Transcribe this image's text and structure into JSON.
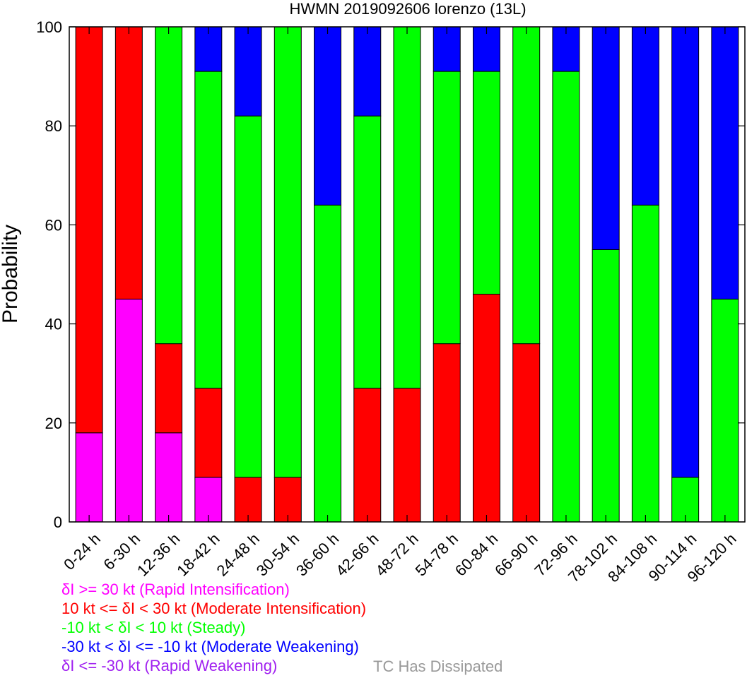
{
  "chart_data": {
    "type": "bar",
    "stacked": true,
    "title": "HWMN 2019092606 lorenzo (13L)",
    "ylabel": "Probability",
    "xlabel": "",
    "ylim": [
      0,
      100
    ],
    "yticks": [
      "0",
      "20",
      "40",
      "60",
      "80",
      "100"
    ],
    "grid": false,
    "categories": [
      "0-24 h",
      "6-30 h",
      "12-36 h",
      "18-42 h",
      "24-48 h",
      "30-54 h",
      "36-60 h",
      "42-66 h",
      "48-72 h",
      "54-78 h",
      "60-84 h",
      "66-90 h",
      "72-96 h",
      "78-102 h",
      "84-108 h",
      "90-114 h",
      "96-120 h"
    ],
    "series": [
      {
        "key": "ri",
        "color": "#ff00ff",
        "values": [
          18,
          45,
          18,
          9,
          0,
          0,
          0,
          0,
          0,
          0,
          0,
          0,
          0,
          0,
          0,
          0,
          0
        ]
      },
      {
        "key": "mi",
        "color": "#ff0000",
        "values": [
          82,
          55,
          18,
          18,
          9,
          9,
          0,
          27,
          27,
          36,
          46,
          36,
          0,
          0,
          0,
          0,
          0
        ]
      },
      {
        "key": "steady",
        "color": "#00ff00",
        "values": [
          0,
          0,
          64,
          64,
          73,
          91,
          64,
          55,
          73,
          55,
          45,
          64,
          91,
          55,
          64,
          9,
          45
        ]
      },
      {
        "key": "mw",
        "color": "#0000ff",
        "values": [
          0,
          0,
          0,
          9,
          18,
          0,
          36,
          18,
          0,
          9,
          9,
          0,
          9,
          45,
          36,
          91,
          55
        ]
      },
      {
        "key": "rw",
        "color": "#a020f0",
        "values": [
          0,
          0,
          0,
          0,
          0,
          0,
          0,
          0,
          0,
          0,
          0,
          0,
          0,
          0,
          0,
          0,
          0
        ]
      }
    ],
    "legend": [
      {
        "text": "δI >= 30 kt (Rapid Intensification)",
        "color": "#ff00ff"
      },
      {
        "text": "10 kt <= δI < 30 kt (Moderate Intensification)",
        "color": "#ff0000"
      },
      {
        "text": "-10 kt < δI < 10 kt (Steady)",
        "color": "#00ff00"
      },
      {
        "text": "-30 kt < δI <= -10 kt (Moderate Weakening)",
        "color": "#0000ff"
      },
      {
        "text": "δI <= -30 kt (Rapid Weakening)",
        "color": "#a020f0"
      }
    ],
    "note": {
      "text": "TC Has Dissipated",
      "color": "#999999"
    },
    "legend_placement": "bottom-left"
  }
}
